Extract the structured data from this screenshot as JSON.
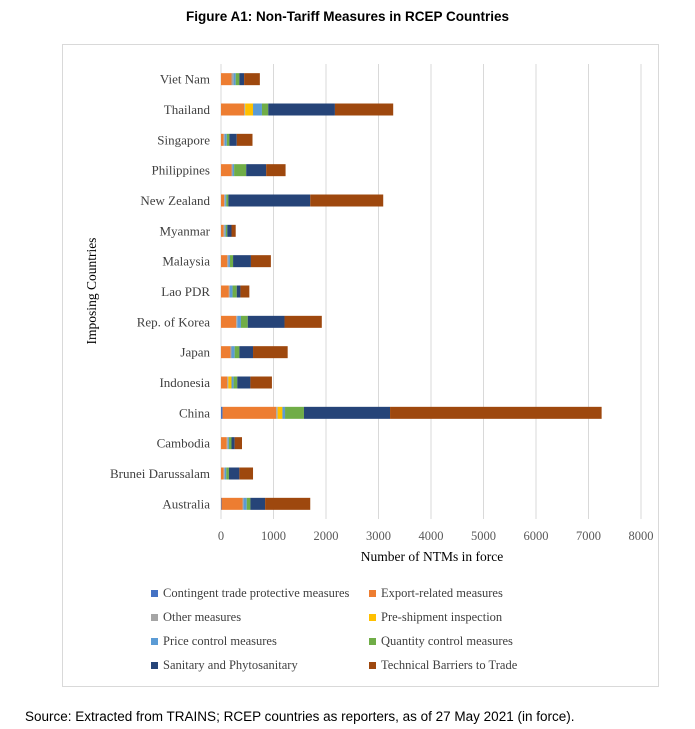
{
  "figure_title": "Figure A1: Non-Tariff Measures in RCEP Countries",
  "source": "Source: Extracted from TRAINS; RCEP countries as reporters, as of 27 May 2021 (in force).",
  "chart_data": {
    "type": "bar",
    "orientation": "horizontal",
    "stacked": true,
    "title": "",
    "xlabel": "Number of NTMs in force",
    "ylabel": "Imposing Countries",
    "xlim": [
      0,
      8000
    ],
    "xticks": [
      "0",
      "1000",
      "2000",
      "3000",
      "4000",
      "5000",
      "6000",
      "7000",
      "8000"
    ],
    "grid": "vertical",
    "legend_position": "bottom",
    "categories": [
      "Viet Nam",
      "Thailand",
      "Singapore",
      "Philippines",
      "New Zealand",
      "Myanmar",
      "Malaysia",
      "Lao PDR",
      "Rep. of Korea",
      "Japan",
      "Indonesia",
      "China",
      "Cambodia",
      "Brunei Darussalam",
      "Australia"
    ],
    "series": [
      {
        "name": "Contingent trade protective measures",
        "color": "#4472c4",
        "values": [
          0,
          0,
          0,
          0,
          0,
          0,
          0,
          0,
          0,
          0,
          0,
          30,
          0,
          0,
          10
        ]
      },
      {
        "name": "Export-related measures",
        "color": "#ed7d31",
        "values": [
          200,
          440,
          50,
          200,
          60,
          50,
          120,
          150,
          290,
          180,
          120,
          1020,
          110,
          50,
          400
        ]
      },
      {
        "name": "Other measures",
        "color": "#a5a5a5",
        "values": [
          40,
          20,
          20,
          20,
          20,
          20,
          20,
          20,
          20,
          20,
          20,
          30,
          20,
          20,
          20
        ]
      },
      {
        "name": "Pre-shipment inspection",
        "color": "#ffc000",
        "values": [
          0,
          150,
          0,
          0,
          0,
          0,
          0,
          0,
          0,
          0,
          60,
          90,
          0,
          0,
          0
        ]
      },
      {
        "name": "Price control measures",
        "color": "#5b9bd5",
        "values": [
          40,
          170,
          40,
          30,
          20,
          20,
          30,
          50,
          70,
          60,
          40,
          50,
          20,
          30,
          60
        ]
      },
      {
        "name": "Quantity control measures",
        "color": "#70ad47",
        "values": [
          70,
          120,
          50,
          230,
          40,
          30,
          60,
          80,
          130,
          90,
          70,
          360,
          50,
          50,
          70
        ]
      },
      {
        "name": "Sanitary and Phytosanitary",
        "color": "#264478",
        "values": [
          90,
          1270,
          140,
          380,
          1560,
          80,
          340,
          70,
          700,
          260,
          250,
          1640,
          60,
          200,
          280
        ]
      },
      {
        "name": "Technical Barriers to Trade",
        "color": "#9e480e",
        "values": [
          300,
          1110,
          300,
          370,
          1390,
          80,
          380,
          170,
          710,
          660,
          410,
          4030,
          140,
          260,
          860
        ]
      }
    ]
  }
}
